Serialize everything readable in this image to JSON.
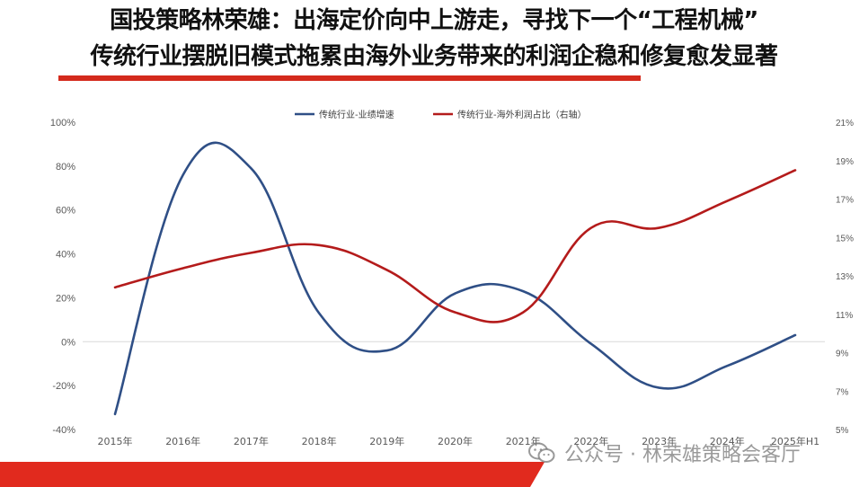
{
  "header": {
    "title_line_1": "国投策略林荣雄：出海定价向中上游走，寻找下一个“工程机械”",
    "title_line_2": "传统行业摆脱旧模式拖累由海外业务带来的利润企稳和修复愈发显著"
  },
  "watermark": {
    "text": "公众号 · 林荣雄策略会客厅",
    "icon": "wechat-icon"
  },
  "colors": {
    "accent_red": "#d42a1c",
    "series_blue": "#2f4f86",
    "series_red": "#b41b1b"
  },
  "chart_data": {
    "type": "line",
    "categories": [
      "2015年",
      "2016年",
      "2017年",
      "2018年",
      "2019年",
      "2020年",
      "2021年",
      "2022年",
      "2023年",
      "2024年",
      "2025年H1"
    ],
    "left_axis": {
      "ylim": [
        -40,
        100
      ],
      "ticks": [
        "-40%",
        "-20%",
        "0%",
        "20%",
        "40%",
        "60%",
        "80%",
        "100%"
      ],
      "values": [
        -40,
        -20,
        0,
        20,
        40,
        60,
        80,
        100
      ]
    },
    "right_axis": {
      "ylim": [
        5,
        21
      ],
      "ticks": [
        "5%",
        "7%",
        "9%",
        "11%",
        "13%",
        "15%",
        "17%",
        "19%",
        "21%"
      ],
      "values": [
        5,
        7,
        9,
        11,
        13,
        15,
        17,
        19,
        21
      ]
    },
    "series": [
      {
        "name": "传统行业-业绩增速",
        "axis": "left",
        "color": "#2f4f86",
        "values": [
          -33,
          76,
          79,
          13,
          -4,
          22,
          23,
          -1,
          -21,
          -11,
          3
        ]
      },
      {
        "name": "传统行业-海外利润占比（右轴）",
        "axis": "right",
        "color": "#b41b1b",
        "values": [
          12.4,
          13.4,
          14.2,
          14.6,
          13.3,
          11.1,
          11.1,
          15.5,
          15.5,
          16.9,
          18.5
        ]
      }
    ],
    "legend_position": "top",
    "grid": false
  }
}
